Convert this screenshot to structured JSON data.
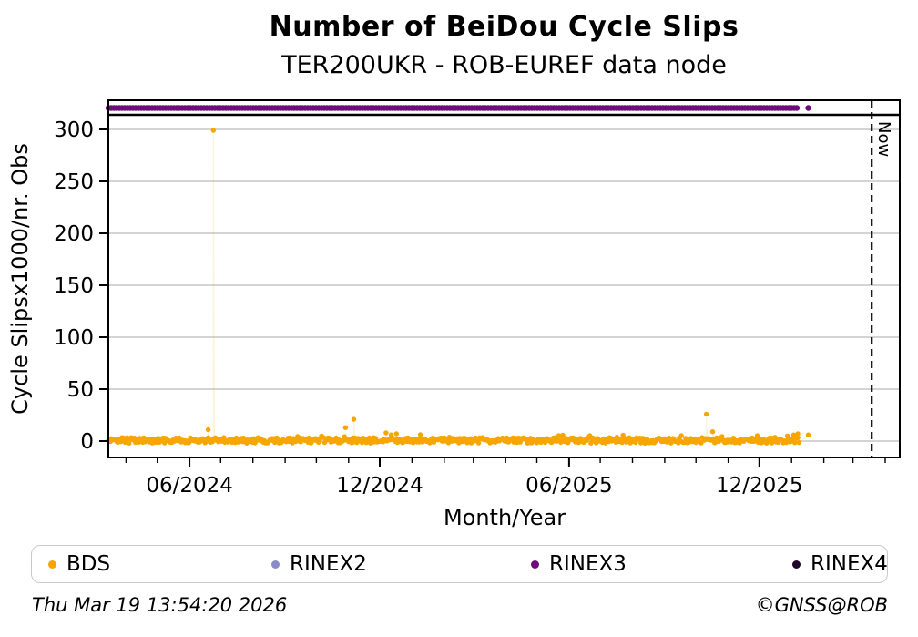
{
  "chart_data": {
    "type": "scatter",
    "title": "Number of BeiDou Cycle Slips",
    "subtitle": "TER200UKR - ROB-EUREF data node",
    "xlabel": "Month/Year",
    "ylabel": "Cycle Slipsx1000/nr. Obs",
    "x_range": [
      "2024-03-15",
      "2026-04-15"
    ],
    "ylim": [
      -16,
      314
    ],
    "yticks": [
      0,
      50,
      100,
      150,
      200,
      250,
      300
    ],
    "xticks": [
      {
        "date": "2024-06-01",
        "label": "06/2024"
      },
      {
        "date": "2024-12-01",
        "label": "12/2024"
      },
      {
        "date": "2025-06-01",
        "label": "06/2025"
      },
      {
        "date": "2025-12-01",
        "label": "12/2025"
      }
    ],
    "minor_ticks": "monthly",
    "grid": {
      "horizontal": true,
      "color": "#c6c6c6"
    },
    "now_line": {
      "date": "2026-03-19",
      "label": "Now"
    },
    "series": [
      {
        "name": "BDS",
        "color": "#F7A600",
        "marker": "dot",
        "render": "noise-band",
        "band": {
          "start": "2024-03-15",
          "end": "2026-01-08",
          "value_min": -2,
          "value_max": 3.4
        },
        "outliers": [
          {
            "date": "2024-06-19",
            "value": 11
          },
          {
            "date": "2024-06-24",
            "value": 299
          },
          {
            "date": "2024-10-29",
            "value": 13
          },
          {
            "date": "2024-11-06",
            "value": 21
          },
          {
            "date": "2024-12-07",
            "value": 8
          },
          {
            "date": "2024-12-12",
            "value": 6
          },
          {
            "date": "2024-12-17",
            "value": 7
          },
          {
            "date": "2025-10-11",
            "value": 26
          },
          {
            "date": "2025-10-17",
            "value": 9
          },
          {
            "date": "2025-12-28",
            "value": 5
          },
          {
            "date": "2026-01-03",
            "value": 6
          },
          {
            "date": "2026-01-07",
            "value": 7
          },
          {
            "date": "2026-01-17",
            "value": 6
          }
        ]
      },
      {
        "name": "RINEX2",
        "color": "#8A8AC8",
        "marker": "dot",
        "render": "none",
        "points": []
      },
      {
        "name": "RINEX3",
        "color": "#6E0D7A",
        "marker": "dot",
        "render": "top-strip",
        "band": {
          "start": "2024-03-15",
          "end": "2026-01-08"
        },
        "points": [
          {
            "date": "2026-01-17"
          }
        ]
      },
      {
        "name": "RINEX4",
        "color": "#230529",
        "marker": "dot",
        "render": "none",
        "points": []
      }
    ],
    "legend_position": "bottom"
  },
  "legend": {
    "items": [
      {
        "label": "BDS",
        "color": "#F7A600"
      },
      {
        "label": "RINEX2",
        "color": "#8A8AC8"
      },
      {
        "label": "RINEX3",
        "color": "#6E0D7A"
      },
      {
        "label": "RINEX4",
        "color": "#230529"
      }
    ]
  },
  "footer": {
    "timestamp": "Thu Mar 19 13:54:20 2026",
    "credit": "©GNSS@ROB"
  }
}
